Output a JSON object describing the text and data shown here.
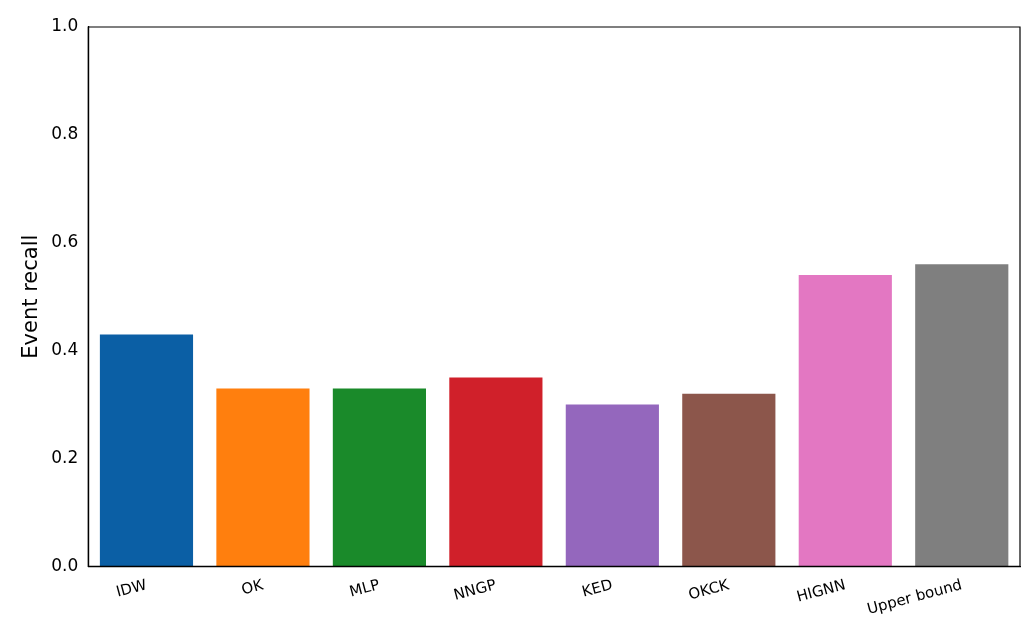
{
  "chart_data": {
    "type": "bar",
    "ylabel": "Event recall",
    "categories": [
      "IDW",
      "OK",
      "MLP",
      "NNGP",
      "KED",
      "OKCK",
      "HIGNN",
      "Upper bound"
    ],
    "values": [
      0.43,
      0.33,
      0.33,
      0.35,
      0.3,
      0.32,
      0.54,
      0.56
    ],
    "colors": [
      "#0b5fa5",
      "#ff7f0e",
      "#1a8a2a",
      "#d0202a",
      "#9467bd",
      "#8c564b",
      "#e377c2",
      "#7f7f7f"
    ],
    "ylim": [
      0,
      1
    ],
    "yticks": [
      {
        "value": 0,
        "label": "0.0"
      },
      {
        "value": 0.2,
        "label": "0.2"
      },
      {
        "value": 0.4,
        "label": "0.4"
      },
      {
        "value": 0.6,
        "label": "0.6"
      },
      {
        "value": 0.8,
        "label": "0.8"
      },
      {
        "value": 1,
        "label": "1.0"
      }
    ],
    "grid": false,
    "legend": false
  }
}
